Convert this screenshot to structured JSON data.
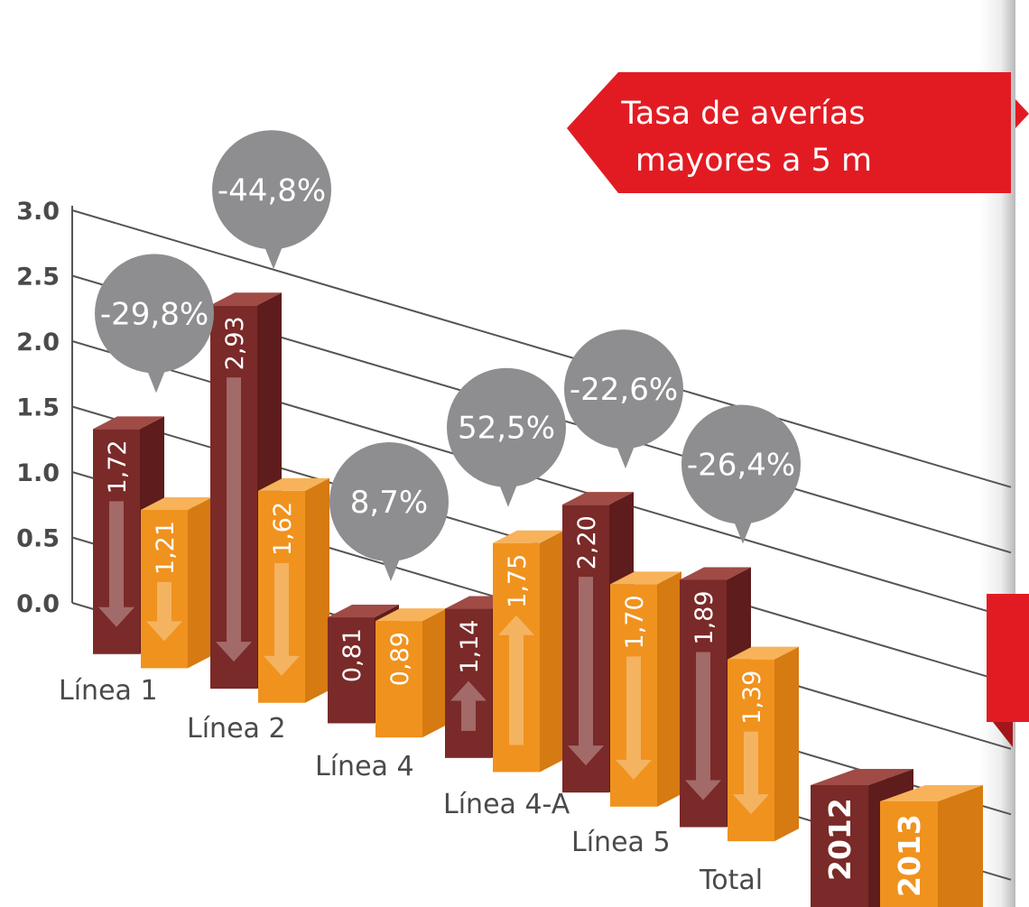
{
  "chart_data": {
    "type": "bar",
    "title": "Tasa de averías mayores a 5 m",
    "categories": [
      "Línea 1",
      "Línea 2",
      "Línea 4",
      "Línea 4-A",
      "Línea 5",
      "Total"
    ],
    "series": [
      {
        "name": "2012",
        "values": [
          1.72,
          2.93,
          0.81,
          1.14,
          2.2,
          1.89
        ],
        "labels": [
          "1,72",
          "2,93",
          "0,81",
          "1,14",
          "2,20",
          "1,89"
        ]
      },
      {
        "name": "2013",
        "values": [
          1.21,
          1.62,
          0.89,
          1.75,
          1.7,
          1.39
        ],
        "labels": [
          "1,21",
          "1,62",
          "0,89",
          "1,75",
          "1,70",
          "1,39"
        ]
      }
    ],
    "changes": [
      "-29,8%",
      "-44,8%",
      "8,7%",
      "52,5%",
      "-22,6%",
      "-26,4%"
    ],
    "y_ticks": [
      "0.0",
      "0.5",
      "1.0",
      "1.5",
      "2.0",
      "2.5",
      "3.0"
    ],
    "ylim": [
      0,
      3
    ],
    "grid": true,
    "legend_position": "bottom-right",
    "colors": {
      "s2012_front": "#7a2a28",
      "s2012_top": "#a04b45",
      "s2012_side": "#5e1d1c",
      "s2013_front": "#f0921e",
      "s2013_top": "#f7b25a",
      "s2013_side": "#d67a12",
      "bubble": "#8e8e90",
      "banner": "#e21b23",
      "grid": "#555555",
      "text": "#4a4a4a"
    }
  }
}
